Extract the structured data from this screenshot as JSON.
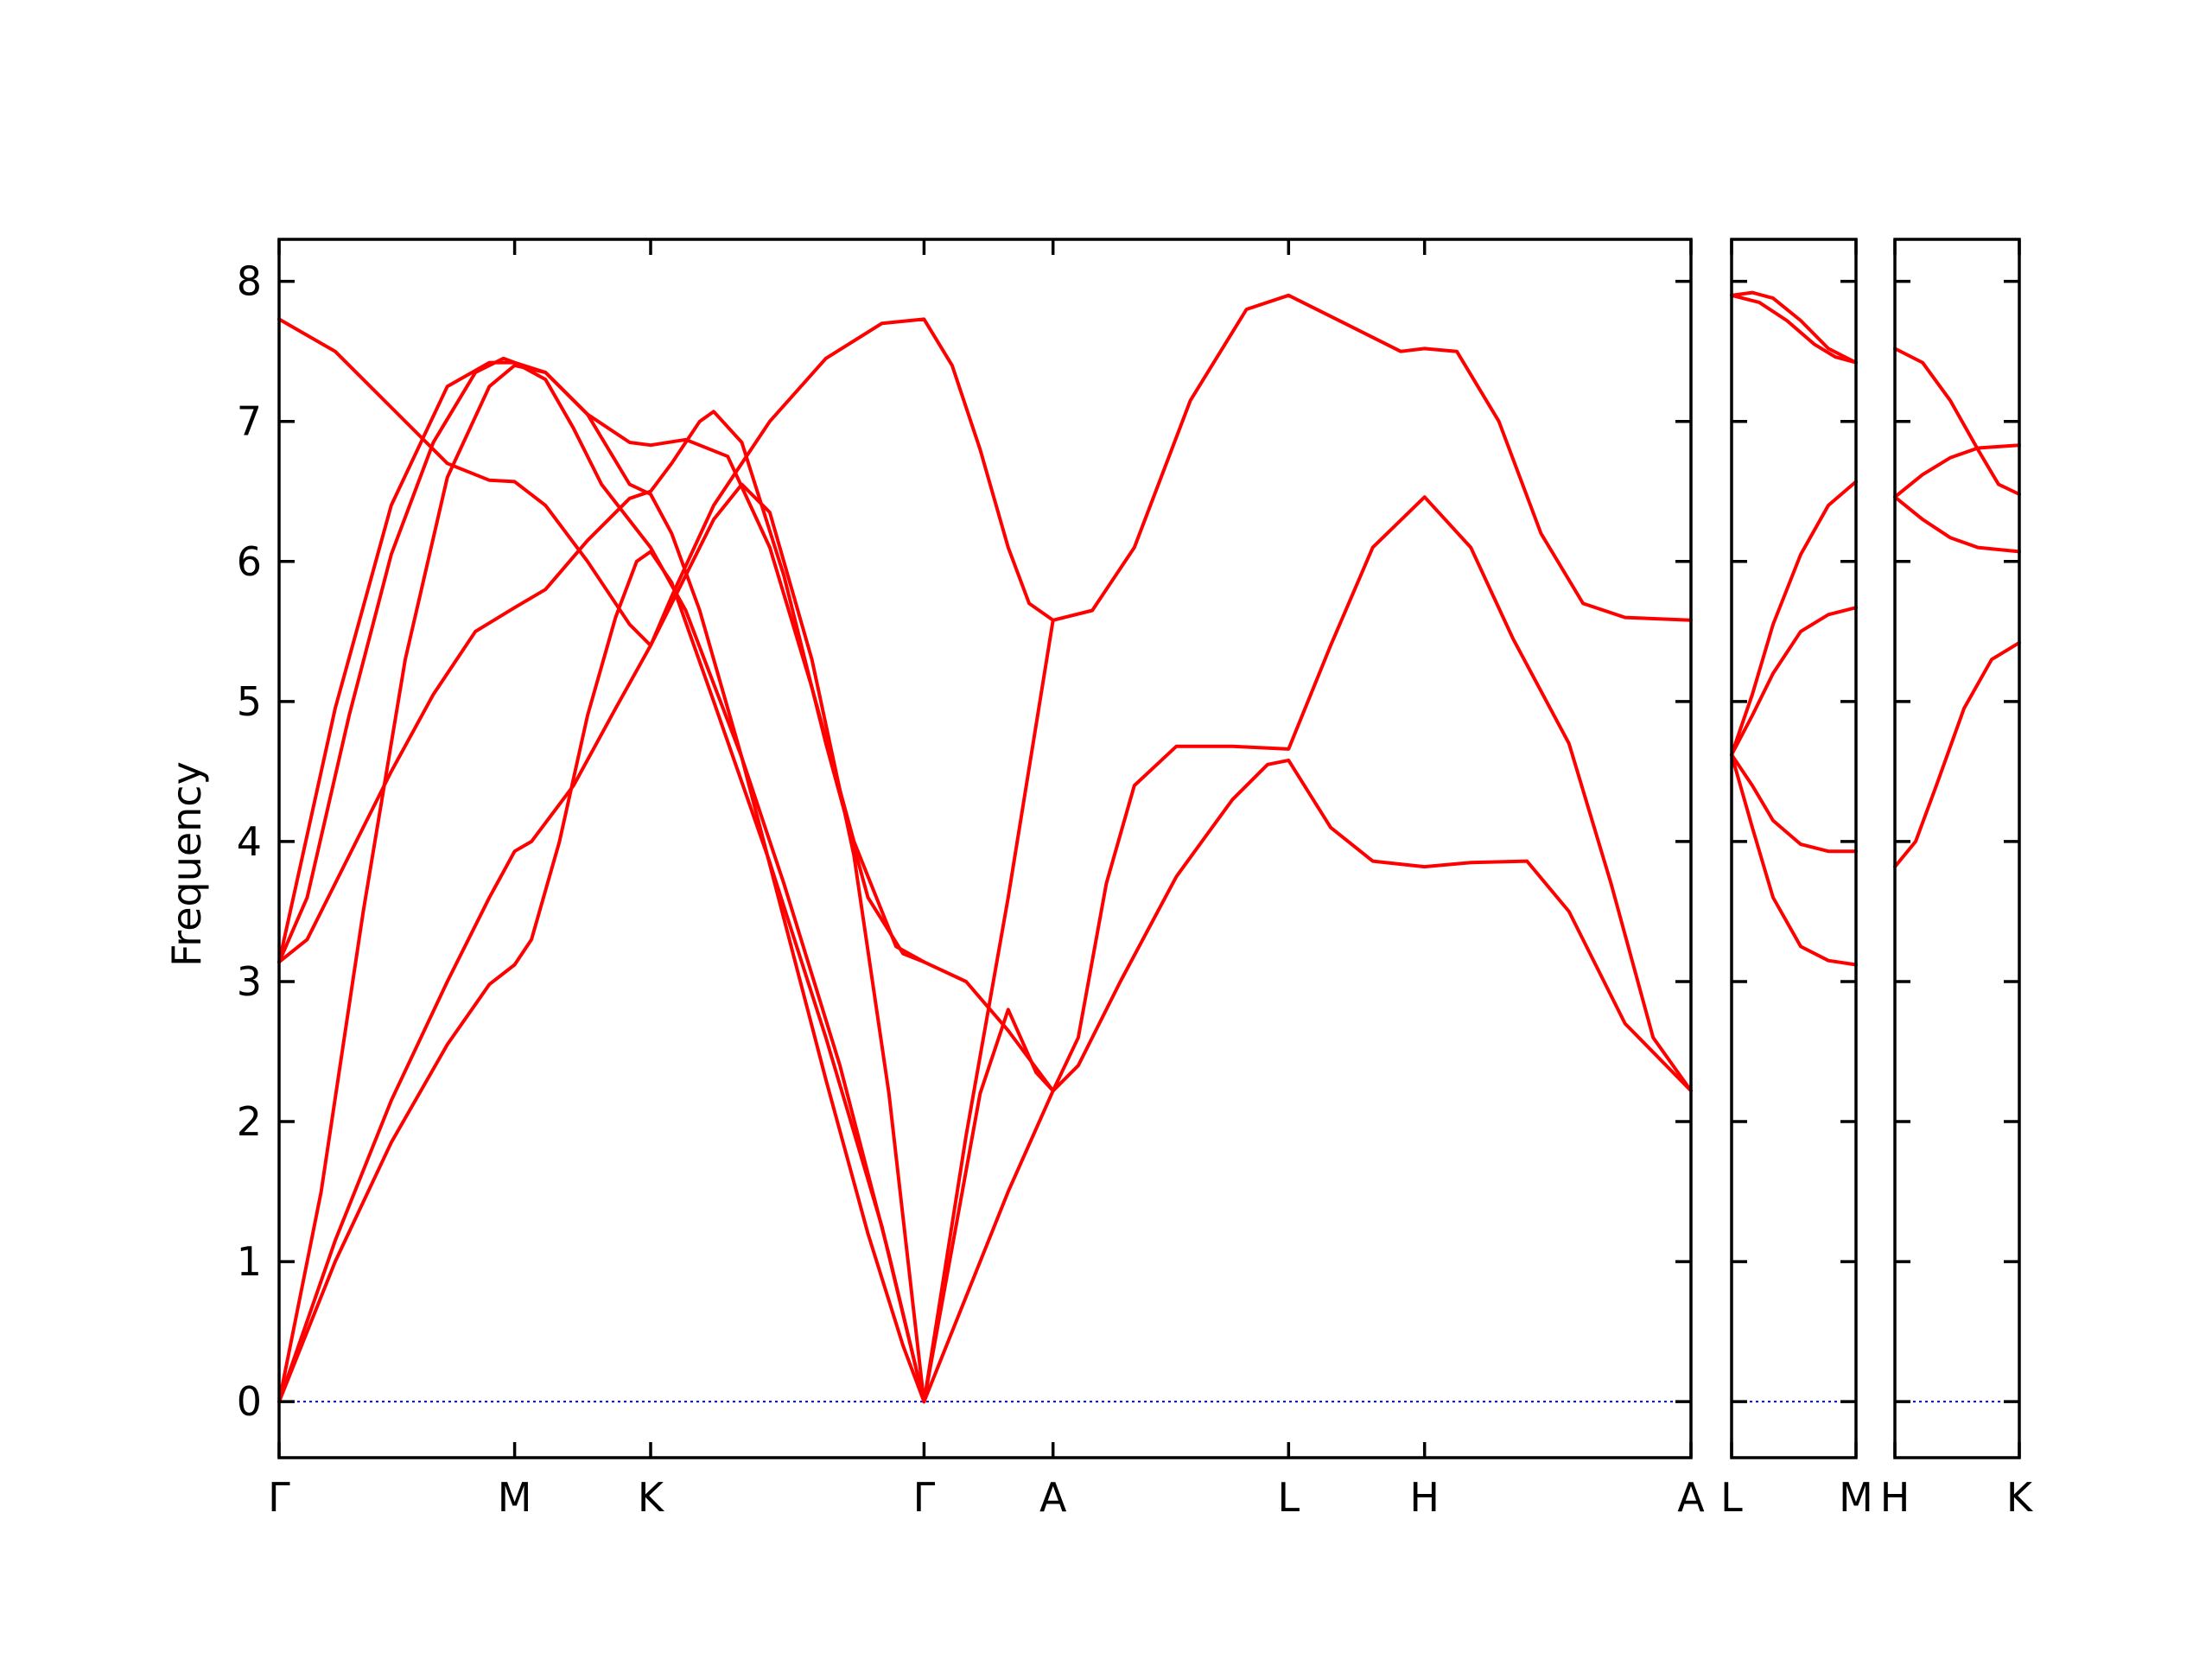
{
  "chart_data": {
    "type": "line",
    "ylabel": "Frequency",
    "ylim": [
      -0.4,
      8.3
    ],
    "yticks": [
      0,
      1,
      2,
      3,
      4,
      5,
      6,
      7,
      8
    ],
    "colors": {
      "bands": "#ff0000",
      "zero_line": "#0000ff",
      "frame": "#000000"
    },
    "panels": [
      {
        "xlim": [
          0,
          10.07
        ],
        "high_symmetry_points": [
          {
            "label": "Γ",
            "x": 0
          },
          {
            "label": "M",
            "x": 1.68
          },
          {
            "label": "K",
            "x": 2.65
          },
          {
            "label": "Γ",
            "x": 4.6
          },
          {
            "label": "A",
            "x": 5.52
          },
          {
            "label": "L",
            "x": 7.2
          },
          {
            "label": "H",
            "x": 8.17
          },
          {
            "label": "A",
            "x": 10.07
          }
        ],
        "bands": [
          [
            [
              0,
              0
            ],
            [
              0.4,
              1.0
            ],
            [
              0.8,
              1.85
            ],
            [
              1.2,
              2.55
            ],
            [
              1.5,
              2.98
            ],
            [
              1.68,
              3.12
            ],
            [
              1.8,
              3.3
            ],
            [
              2.0,
              4.0
            ],
            [
              2.2,
              4.9
            ],
            [
              2.4,
              5.6
            ],
            [
              2.55,
              6.0
            ],
            [
              2.65,
              6.07
            ],
            [
              2.8,
              5.85
            ],
            [
              3.1,
              5.0
            ],
            [
              3.5,
              3.85
            ],
            [
              3.9,
              2.6
            ],
            [
              4.3,
              1.25
            ],
            [
              4.6,
              0
            ],
            [
              4.9,
              0.75
            ],
            [
              5.2,
              1.5
            ],
            [
              5.52,
              2.22
            ],
            [
              5.7,
              2.4
            ],
            [
              6.0,
              3.0
            ],
            [
              6.4,
              3.75
            ],
            [
              6.8,
              4.3
            ],
            [
              7.05,
              4.55
            ],
            [
              7.2,
              4.58
            ],
            [
              7.5,
              4.1
            ],
            [
              7.8,
              3.86
            ],
            [
              8.17,
              3.82
            ],
            [
              8.5,
              3.85
            ],
            [
              8.9,
              3.86
            ],
            [
              9.2,
              3.5
            ],
            [
              9.6,
              2.7
            ],
            [
              10.07,
              2.22
            ]
          ],
          [
            [
              0,
              0
            ],
            [
              0.4,
              1.15
            ],
            [
              0.8,
              2.15
            ],
            [
              1.2,
              3.0
            ],
            [
              1.5,
              3.6
            ],
            [
              1.68,
              3.93
            ],
            [
              1.8,
              4.0
            ],
            [
              2.1,
              4.4
            ],
            [
              2.4,
              4.95
            ],
            [
              2.65,
              5.4
            ],
            [
              2.9,
              5.9
            ],
            [
              3.1,
              6.3
            ],
            [
              3.3,
              6.55
            ],
            [
              3.5,
              6.35
            ],
            [
              3.8,
              5.3
            ],
            [
              4.1,
              3.9
            ],
            [
              4.35,
              2.2
            ],
            [
              4.6,
              0
            ],
            [
              4.9,
              1.9
            ],
            [
              5.2,
              3.6
            ],
            [
              5.52,
              5.58
            ],
            [
              5.8,
              5.65
            ],
            [
              6.1,
              6.1
            ],
            [
              6.5,
              7.15
            ],
            [
              6.9,
              7.8
            ],
            [
              7.2,
              7.9
            ],
            [
              7.6,
              7.7
            ],
            [
              8.0,
              7.5
            ],
            [
              8.17,
              7.52
            ],
            [
              8.4,
              7.5
            ],
            [
              8.7,
              7.0
            ],
            [
              9.0,
              6.2
            ],
            [
              9.3,
              5.7
            ],
            [
              9.6,
              5.6
            ],
            [
              10.07,
              5.58
            ]
          ],
          [
            [
              0,
              0
            ],
            [
              0.3,
              1.5
            ],
            [
              0.6,
              3.5
            ],
            [
              0.9,
              5.3
            ],
            [
              1.2,
              6.6
            ],
            [
              1.5,
              7.25
            ],
            [
              1.68,
              7.4
            ],
            [
              1.9,
              7.35
            ],
            [
              2.2,
              7.05
            ],
            [
              2.5,
              6.55
            ],
            [
              2.65,
              6.48
            ],
            [
              2.8,
              6.2
            ],
            [
              3.0,
              5.65
            ],
            [
              3.3,
              4.6
            ],
            [
              3.6,
              3.45
            ],
            [
              3.9,
              2.3
            ],
            [
              4.2,
              1.2
            ],
            [
              4.45,
              0.4
            ],
            [
              4.6,
              0
            ],
            [
              4.8,
              1.1
            ],
            [
              5.0,
              2.2
            ],
            [
              5.2,
              2.8
            ],
            [
              5.4,
              2.35
            ],
            [
              5.52,
              2.22
            ],
            [
              5.7,
              2.6
            ],
            [
              5.9,
              3.7
            ],
            [
              6.1,
              4.4
            ],
            [
              6.4,
              4.68
            ],
            [
              6.8,
              4.68
            ],
            [
              7.2,
              4.66
            ],
            [
              7.5,
              5.4
            ],
            [
              7.8,
              6.1
            ],
            [
              8.17,
              6.46
            ],
            [
              8.5,
              6.1
            ],
            [
              8.8,
              5.45
            ],
            [
              9.2,
              4.7
            ],
            [
              9.5,
              3.7
            ],
            [
              9.8,
              2.6
            ],
            [
              10.07,
              2.22
            ]
          ],
          [
            [
              0,
              3.14
            ],
            [
              0.2,
              3.3
            ],
            [
              0.5,
              3.9
            ],
            [
              0.8,
              4.5
            ],
            [
              1.1,
              5.05
            ],
            [
              1.4,
              5.5
            ],
            [
              1.68,
              5.67
            ],
            [
              1.9,
              5.8
            ],
            [
              2.2,
              6.15
            ],
            [
              2.5,
              6.45
            ],
            [
              2.65,
              6.5
            ],
            [
              2.8,
              6.7
            ],
            [
              3.0,
              7.0
            ],
            [
              3.1,
              7.07
            ],
            [
              3.3,
              6.85
            ],
            [
              3.6,
              5.9
            ],
            [
              3.9,
              4.7
            ],
            [
              4.2,
              3.6
            ],
            [
              4.45,
              3.2
            ],
            [
              4.6,
              3.14
            ],
            [
              4.9,
              3.0
            ],
            [
              5.2,
              2.65
            ],
            [
              5.52,
              2.22
            ]
          ],
          [
            [
              0,
              3.14
            ],
            [
              0.2,
              3.6
            ],
            [
              0.5,
              4.9
            ],
            [
              0.8,
              6.05
            ],
            [
              1.1,
              6.85
            ],
            [
              1.4,
              7.35
            ],
            [
              1.6,
              7.45
            ],
            [
              1.68,
              7.42
            ],
            [
              1.9,
              7.3
            ],
            [
              2.1,
              6.95
            ],
            [
              2.3,
              6.55
            ],
            [
              2.65,
              6.1
            ],
            [
              2.9,
              5.65
            ],
            [
              3.3,
              4.6
            ],
            [
              3.6,
              3.7
            ],
            [
              4.0,
              2.4
            ],
            [
              4.35,
              1.05
            ],
            [
              4.6,
              0
            ]
          ],
          [
            [
              0,
              7.73
            ],
            [
              0.4,
              7.5
            ],
            [
              0.8,
              7.1
            ],
            [
              1.2,
              6.7
            ],
            [
              1.5,
              6.58
            ],
            [
              1.68,
              6.57
            ],
            [
              1.9,
              6.4
            ],
            [
              2.2,
              6.0
            ],
            [
              2.5,
              5.55
            ],
            [
              2.65,
              5.4
            ],
            [
              2.8,
              5.75
            ],
            [
              3.1,
              6.4
            ],
            [
              3.5,
              7.0
            ],
            [
              3.9,
              7.45
            ],
            [
              4.3,
              7.7
            ],
            [
              4.6,
              7.73
            ],
            [
              4.8,
              7.4
            ],
            [
              5.0,
              6.8
            ],
            [
              5.2,
              6.1
            ],
            [
              5.35,
              5.7
            ],
            [
              5.52,
              5.58
            ]
          ],
          [
            [
              0,
              3.14
            ],
            [
              0.4,
              4.95
            ],
            [
              0.8,
              6.4
            ],
            [
              1.2,
              7.25
            ],
            [
              1.5,
              7.42
            ],
            [
              1.68,
              7.42
            ],
            [
              1.9,
              7.35
            ],
            [
              2.2,
              7.05
            ],
            [
              2.5,
              6.85
            ],
            [
              2.65,
              6.83
            ],
            [
              2.9,
              6.87
            ],
            [
              3.2,
              6.75
            ],
            [
              3.5,
              6.1
            ],
            [
              3.8,
              5.1
            ],
            [
              4.1,
              4.0
            ],
            [
              4.4,
              3.25
            ],
            [
              4.6,
              3.14
            ]
          ]
        ]
      },
      {
        "xlim": [
          0,
          0.9
        ],
        "high_symmetry_points": [
          {
            "label": "L",
            "x": 0
          },
          {
            "label": "M",
            "x": 0.9
          }
        ],
        "bands": [
          [
            [
              0,
              4.62
            ],
            [
              0.15,
              4.1
            ],
            [
              0.3,
              3.6
            ],
            [
              0.5,
              3.25
            ],
            [
              0.7,
              3.15
            ],
            [
              0.9,
              3.12
            ]
          ],
          [
            [
              0,
              4.62
            ],
            [
              0.15,
              4.4
            ],
            [
              0.3,
              4.15
            ],
            [
              0.5,
              3.98
            ],
            [
              0.7,
              3.93
            ],
            [
              0.9,
              3.93
            ]
          ],
          [
            [
              0,
              4.62
            ],
            [
              0.15,
              4.9
            ],
            [
              0.3,
              5.2
            ],
            [
              0.5,
              5.5
            ],
            [
              0.7,
              5.62
            ],
            [
              0.9,
              5.67
            ]
          ],
          [
            [
              0,
              4.62
            ],
            [
              0.15,
              5.05
            ],
            [
              0.3,
              5.55
            ],
            [
              0.5,
              6.05
            ],
            [
              0.7,
              6.4
            ],
            [
              0.9,
              6.57
            ]
          ],
          [
            [
              0,
              7.9
            ],
            [
              0.2,
              7.85
            ],
            [
              0.4,
              7.72
            ],
            [
              0.6,
              7.55
            ],
            [
              0.75,
              7.46
            ],
            [
              0.9,
              7.42
            ]
          ],
          [
            [
              0,
              7.9
            ],
            [
              0.15,
              7.92
            ],
            [
              0.3,
              7.88
            ],
            [
              0.5,
              7.72
            ],
            [
              0.7,
              7.52
            ],
            [
              0.9,
              7.42
            ]
          ]
        ]
      },
      {
        "xlim": [
          0,
          0.9
        ],
        "high_symmetry_points": [
          {
            "label": "H",
            "x": 0
          },
          {
            "label": "K",
            "x": 0.9
          }
        ],
        "bands": [
          [
            [
              0,
              3.82
            ],
            [
              0.15,
              4.0
            ],
            [
              0.3,
              4.4
            ],
            [
              0.5,
              4.95
            ],
            [
              0.7,
              5.3
            ],
            [
              0.9,
              5.42
            ]
          ],
          [
            [
              0,
              6.46
            ],
            [
              0.2,
              6.3
            ],
            [
              0.4,
              6.17
            ],
            [
              0.6,
              6.1
            ],
            [
              0.9,
              6.07
            ]
          ],
          [
            [
              0,
              6.46
            ],
            [
              0.2,
              6.62
            ],
            [
              0.4,
              6.74
            ],
            [
              0.6,
              6.81
            ],
            [
              0.9,
              6.83
            ]
          ],
          [
            [
              0,
              7.52
            ],
            [
              0.2,
              7.42
            ],
            [
              0.4,
              7.15
            ],
            [
              0.6,
              6.8
            ],
            [
              0.75,
              6.55
            ],
            [
              0.9,
              6.48
            ]
          ]
        ]
      }
    ]
  }
}
